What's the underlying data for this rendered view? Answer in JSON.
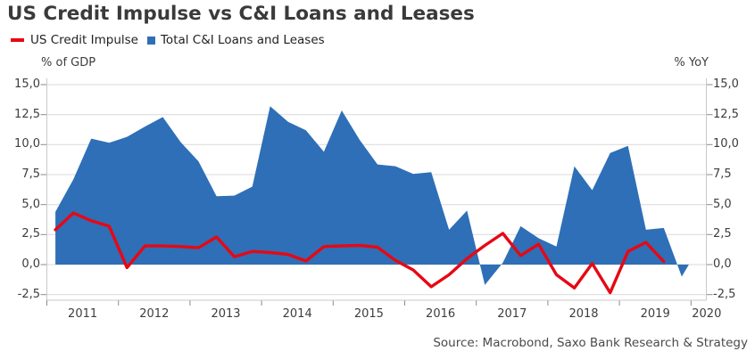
{
  "header": {
    "title": "US Credit Impulse vs C&I Loans and Leases"
  },
  "legend": {
    "items": [
      {
        "label": "US Credit Impulse",
        "marker": "line-dash",
        "color": "#e60814"
      },
      {
        "label": "Total C&I Loans and Leases",
        "marker": "square",
        "color": "#2e6fb7"
      }
    ]
  },
  "axes": {
    "left_unit": "% of GDP",
    "right_unit": "% YoY",
    "y_tick_labels": [
      "15,0",
      "12,5",
      "10,0",
      "7,5",
      "5,0",
      "2,5",
      "0,0",
      "-2,5"
    ],
    "y_tick_values": [
      15,
      12.5,
      10,
      7.5,
      5,
      2.5,
      0,
      -2.5
    ],
    "x_tick_labels": [
      "2011",
      "2012",
      "2013",
      "2014",
      "2015",
      "2016",
      "2017",
      "2018",
      "2019",
      "2020"
    ],
    "x_tick_values": [
      2011,
      2012,
      2013,
      2014,
      2015,
      2016,
      2017,
      2018,
      2019,
      2020
    ]
  },
  "source": "Source: Macrobond, Saxo Bank Research & Strategy",
  "colors": {
    "area_blue": "#2e6fb7",
    "line_red": "#e60814",
    "gridline": "#d9d9d9",
    "frame": "#c9c9c9",
    "tick": "#8a8a8a",
    "title_text": "#3a3a3a",
    "axis_text": "#3d3d3d",
    "source_text": "#4a4a4a"
  },
  "chart_data": {
    "type": "area",
    "subtype": "combo area + line, dual y-axis (identical scales), quarterly data",
    "title": "US Credit Impulse vs C&I Loans and Leases",
    "xlabel": "year",
    "ylabel_left": "% of GDP",
    "ylabel_right": "% YoY",
    "xlim": [
      2011,
      2020.2
    ],
    "ylim": [
      -2.5,
      15
    ],
    "grid": "horizontal",
    "legend_position": "top-left",
    "series": [
      {
        "name": "Total C&I Loans and Leases",
        "type": "area",
        "axis": "right",
        "unit": "% YoY",
        "color": "#2e6fb7",
        "x": [
          2011.12,
          2011.37,
          2011.62,
          2011.87,
          2012.12,
          2012.37,
          2012.62,
          2012.87,
          2013.12,
          2013.37,
          2013.62,
          2013.87,
          2014.12,
          2014.37,
          2014.62,
          2014.87,
          2015.12,
          2015.37,
          2015.62,
          2015.87,
          2016.12,
          2016.37,
          2016.62,
          2016.87,
          2017.12,
          2017.37,
          2017.62,
          2017.87,
          2018.12,
          2018.37,
          2018.62,
          2018.87,
          2019.12,
          2019.37,
          2019.62,
          2019.87,
          2019.97
        ],
        "values": [
          4.4,
          7.1,
          10.5,
          10.15,
          10.65,
          11.5,
          12.3,
          10.2,
          8.6,
          5.7,
          5.75,
          6.5,
          13.2,
          11.9,
          11.2,
          9.4,
          12.85,
          10.4,
          8.35,
          8.2,
          7.55,
          7.7,
          2.9,
          4.5,
          -1.7,
          0.15,
          3.2,
          2.2,
          1.5,
          8.2,
          6.2,
          9.3,
          9.9,
          2.9,
          3.05,
          -1.0,
          0.0
        ]
      },
      {
        "name": "US Credit Impulse",
        "type": "line",
        "axis": "left",
        "unit": "% of GDP",
        "color": "#e60814",
        "x": [
          2011.12,
          2011.37,
          2011.62,
          2011.87,
          2012.12,
          2012.37,
          2012.62,
          2012.87,
          2013.12,
          2013.37,
          2013.62,
          2013.87,
          2014.12,
          2014.37,
          2014.62,
          2014.87,
          2015.12,
          2015.37,
          2015.62,
          2015.87,
          2016.12,
          2016.37,
          2016.62,
          2016.87,
          2017.12,
          2017.37,
          2017.62,
          2017.87,
          2018.12,
          2018.37,
          2018.62,
          2018.87,
          2019.12,
          2019.37,
          2019.62
        ],
        "values": [
          2.9,
          4.3,
          3.65,
          3.2,
          -0.25,
          1.55,
          1.55,
          1.5,
          1.4,
          2.3,
          0.65,
          1.1,
          1.0,
          0.85,
          0.3,
          1.5,
          1.55,
          1.6,
          1.45,
          0.35,
          -0.45,
          -1.85,
          -0.85,
          0.5,
          1.6,
          2.6,
          0.75,
          1.7,
          -0.85,
          -1.95,
          0.1,
          -2.35,
          1.1,
          1.85,
          0.25
        ]
      }
    ]
  }
}
